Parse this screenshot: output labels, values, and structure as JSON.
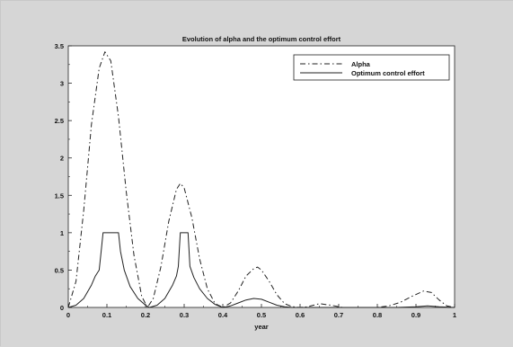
{
  "chart_data": {
    "type": "line",
    "title": "Evolution of alpha and the optimum control effort",
    "xlabel": "year",
    "ylabel": "",
    "xlim": [
      0,
      1
    ],
    "ylim": [
      0,
      3.5
    ],
    "xticks": [
      0,
      0.1,
      0.2,
      0.3,
      0.4,
      0.5,
      0.6,
      0.7,
      0.8,
      0.9,
      1
    ],
    "xtick_labels": [
      "0",
      "0.1",
      "0.2",
      "0.3",
      "0.4",
      "0.5",
      "0.6",
      "0.7",
      "0.8",
      "0.9",
      "1"
    ],
    "yticks": [
      0,
      0.5,
      1,
      1.5,
      2,
      2.5,
      3,
      3.5
    ],
    "ytick_labels": [
      "0",
      "0.5",
      "1",
      "1.5",
      "2",
      "2.5",
      "3",
      "3.5"
    ],
    "grid": false,
    "legend_position": "top-right",
    "series": [
      {
        "name": "Alpha",
        "style": "dash-dot",
        "color": "#222222",
        "x": [
          0,
          0.02,
          0.04,
          0.06,
          0.08,
          0.095,
          0.11,
          0.13,
          0.15,
          0.17,
          0.19,
          0.205,
          0.22,
          0.24,
          0.26,
          0.28,
          0.29,
          0.3,
          0.32,
          0.34,
          0.36,
          0.38,
          0.4,
          0.42,
          0.44,
          0.46,
          0.48,
          0.49,
          0.5,
          0.52,
          0.54,
          0.56,
          0.58,
          0.6,
          0.62,
          0.65,
          0.68,
          0.71,
          0.74,
          0.77,
          0.8,
          0.83,
          0.86,
          0.89,
          0.92,
          0.94,
          0.96,
          0.98,
          1
        ],
        "y": [
          0,
          0.35,
          1.3,
          2.45,
          3.2,
          3.42,
          3.3,
          2.55,
          1.55,
          0.7,
          0.15,
          0.0,
          0.12,
          0.55,
          1.15,
          1.58,
          1.66,
          1.6,
          1.2,
          0.65,
          0.25,
          0.05,
          0.0,
          0.06,
          0.22,
          0.42,
          0.52,
          0.54,
          0.5,
          0.35,
          0.17,
          0.05,
          0.01,
          0.0,
          0.01,
          0.05,
          0.03,
          0.0,
          0.0,
          0.0,
          0.0,
          0.02,
          0.07,
          0.15,
          0.22,
          0.2,
          0.1,
          0.02,
          0.0
        ]
      },
      {
        "name": "Optimum control effort",
        "style": "solid",
        "color": "#222222",
        "x": [
          0,
          0.02,
          0.04,
          0.06,
          0.07,
          0.08,
          0.085,
          0.09,
          0.13,
          0.135,
          0.145,
          0.16,
          0.18,
          0.2,
          0.21,
          0.23,
          0.25,
          0.27,
          0.28,
          0.285,
          0.29,
          0.31,
          0.315,
          0.325,
          0.34,
          0.36,
          0.38,
          0.4,
          0.42,
          0.44,
          0.46,
          0.48,
          0.5,
          0.52,
          0.54,
          0.56,
          0.58,
          0.6,
          0.65,
          0.7,
          0.75,
          0.8,
          0.85,
          0.9,
          0.93,
          0.96,
          1
        ],
        "y": [
          0,
          0.03,
          0.12,
          0.3,
          0.42,
          0.5,
          0.75,
          1.0,
          1.0,
          0.75,
          0.5,
          0.28,
          0.12,
          0.03,
          0.0,
          0.03,
          0.12,
          0.3,
          0.42,
          0.55,
          1.0,
          1.0,
          0.55,
          0.4,
          0.25,
          0.12,
          0.04,
          0.0,
          0.02,
          0.06,
          0.1,
          0.12,
          0.11,
          0.07,
          0.03,
          0.01,
          0.0,
          0.0,
          0.0,
          0.0,
          0.0,
          0.0,
          0.0,
          0.01,
          0.02,
          0.01,
          0.0
        ]
      }
    ]
  }
}
